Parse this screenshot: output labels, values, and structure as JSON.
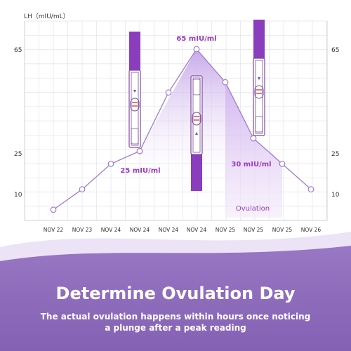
{
  "colors": {
    "accent": "#9b3cc0",
    "line": "#a07ad0",
    "grid": "#e3e3ea",
    "axis_text": "#333333",
    "banner": "#8d6ab8",
    "strip": "#8a3dbd",
    "shade": "#d7bdec"
  },
  "chart_data": {
    "type": "line",
    "ylabel": "LH（mIU/mL）",
    "y_ticks": [
      "65",
      "25",
      "10"
    ],
    "categories": [
      "NOV 22",
      "NOV 23",
      "NOV 24",
      "NOV 24",
      "NOV 24",
      "NOV 24",
      "NOV 25",
      "NOV 25",
      "NOV 25",
      "NOV 26"
    ],
    "series": [
      {
        "values": [
          2,
          10,
          20,
          25,
          48,
          65,
          52,
          30,
          20,
          10
        ]
      }
    ],
    "ylim": [
      0,
      70
    ],
    "grid": true,
    "annotations": {
      "peak": "65 mIU/ml",
      "rise": "25 mIU/ml",
      "drop": "30 mIU/ml",
      "shaded_region": "Ovulation"
    }
  },
  "banner": {
    "title": "Determine Ovulation Day",
    "subtitle_line1": "The actual ovulation happens within hours once noticing",
    "subtitle_line2": "a plunge after a peak reading"
  }
}
